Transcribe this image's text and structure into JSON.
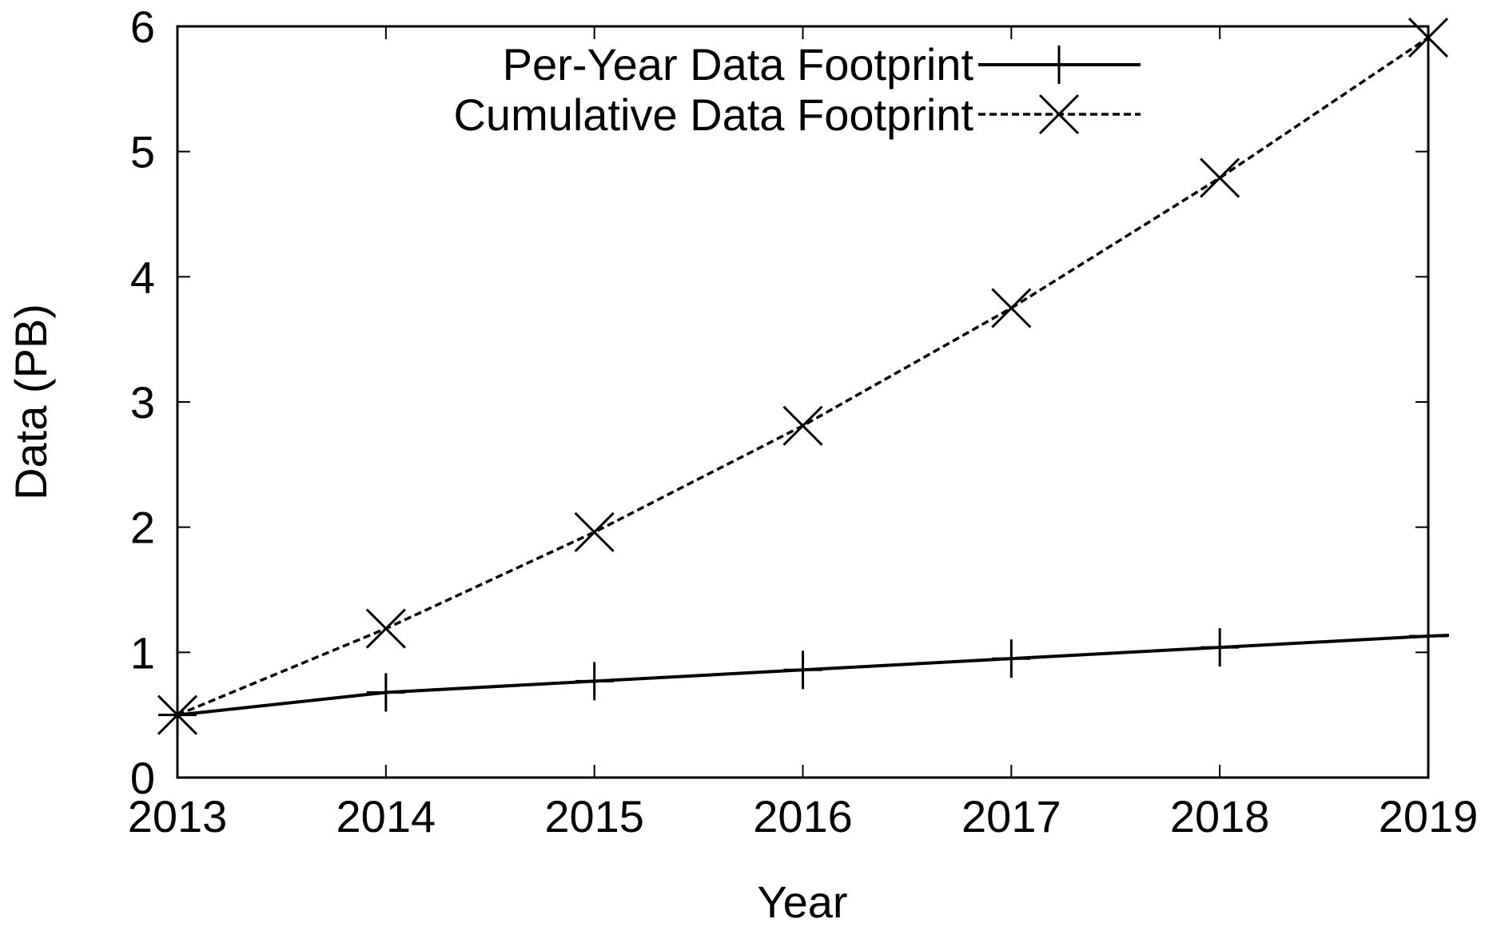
{
  "chart_data": {
    "type": "line",
    "title": "",
    "xlabel": "Year",
    "ylabel": "Data (PB)",
    "x": [
      2013,
      2014,
      2015,
      2016,
      2017,
      2018,
      2019
    ],
    "xlim": [
      2013,
      2019
    ],
    "ylim": [
      0,
      6
    ],
    "xticks": [
      "2013",
      "2014",
      "2015",
      "2016",
      "2017",
      "2018",
      "2019"
    ],
    "yticks": [
      "0",
      "1",
      "2",
      "3",
      "4",
      "5",
      "6"
    ],
    "grid": false,
    "legend_position": "top-right",
    "series": [
      {
        "name": "Per-Year Data Footprint",
        "marker": "plus",
        "line": "solid",
        "color": "#000000",
        "values": [
          0.5,
          0.68,
          0.77,
          0.86,
          0.95,
          1.04,
          1.13
        ]
      },
      {
        "name": "Cumulative Data Footprint",
        "marker": "cross",
        "line": "dashed",
        "color": "#000000",
        "values": [
          0.5,
          1.19,
          1.96,
          2.81,
          3.75,
          4.79,
          5.91
        ]
      }
    ]
  }
}
